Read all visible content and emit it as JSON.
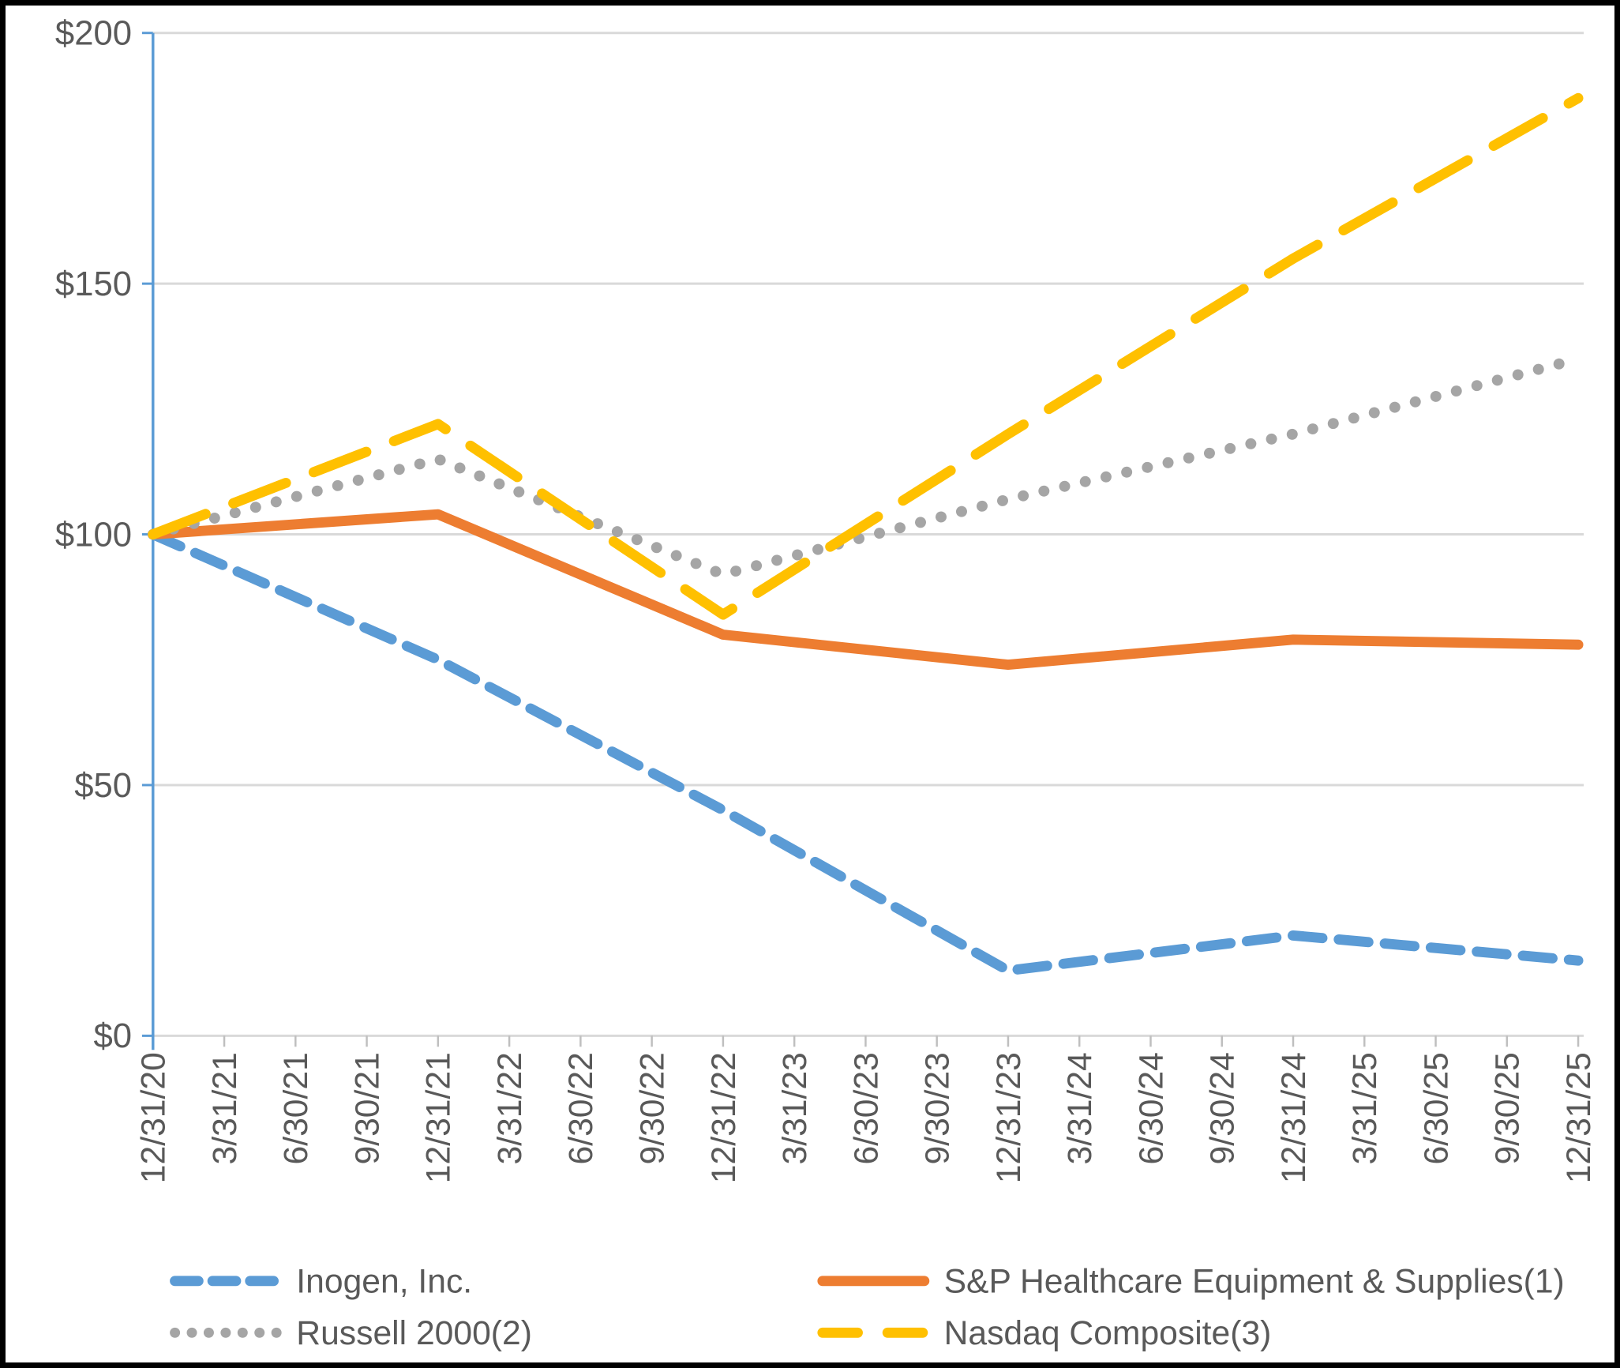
{
  "figure": {
    "background": "#FFFFFF",
    "border_color": "#000000"
  },
  "chart_data": {
    "type": "line",
    "title": "",
    "xlabel": "",
    "ylabel": "",
    "ylim": [
      0,
      200
    ],
    "grid": "horizontal",
    "legend_position": "bottom",
    "x_tick_labels": [
      "12/31/20",
      "3/31/21",
      "6/30/21",
      "9/30/21",
      "12/31/21",
      "3/31/22",
      "6/30/22",
      "9/30/22",
      "12/31/22",
      "3/31/23",
      "6/30/23",
      "9/30/23",
      "12/31/23",
      "3/31/24",
      "6/30/24",
      "9/30/24",
      "12/31/24",
      "3/31/25",
      "6/30/25",
      "9/30/25",
      "12/31/25"
    ],
    "y_tick_labels": [
      "$0",
      "$50",
      "$100",
      "$150",
      "$200"
    ],
    "y_tick_values": [
      0,
      50,
      100,
      150,
      200
    ],
    "gridline_values": [
      50,
      100,
      150,
      200
    ],
    "data_x": [
      "12/31/20",
      "12/31/21",
      "12/31/22",
      "12/31/23",
      "12/31/24",
      "12/31/25"
    ],
    "data_x_tick_indices": [
      0,
      4,
      8,
      12,
      16,
      20
    ],
    "series": [
      {
        "name": "Inogen, Inc.",
        "color": "#5B9BD5",
        "line_style": "dashed",
        "values": [
          100,
          75,
          45,
          13,
          20,
          15
        ]
      },
      {
        "name": "S&P Healthcare Equipment & Supplies(1)",
        "color": "#ED7D31",
        "line_style": "solid",
        "values": [
          100,
          104,
          80,
          74,
          79,
          78
        ]
      },
      {
        "name": "Russell 2000(2)",
        "color": "#A5A5A5",
        "line_style": "dotted",
        "values": [
          100,
          115,
          92,
          107,
          120,
          135
        ]
      },
      {
        "name": "Nasdaq Composite(3)",
        "color": "#FFC000",
        "line_style": "long-dash",
        "values": [
          100,
          122,
          84,
          120,
          155,
          187
        ]
      }
    ],
    "colors": {
      "gridline": "#D9D9D9",
      "y_axis_line": "#5B9BD5",
      "x_axis_line": "#D9D9D9",
      "x_tick": "#BFBFBF",
      "axis_label": "#595959",
      "legend_text": "#595959"
    }
  }
}
